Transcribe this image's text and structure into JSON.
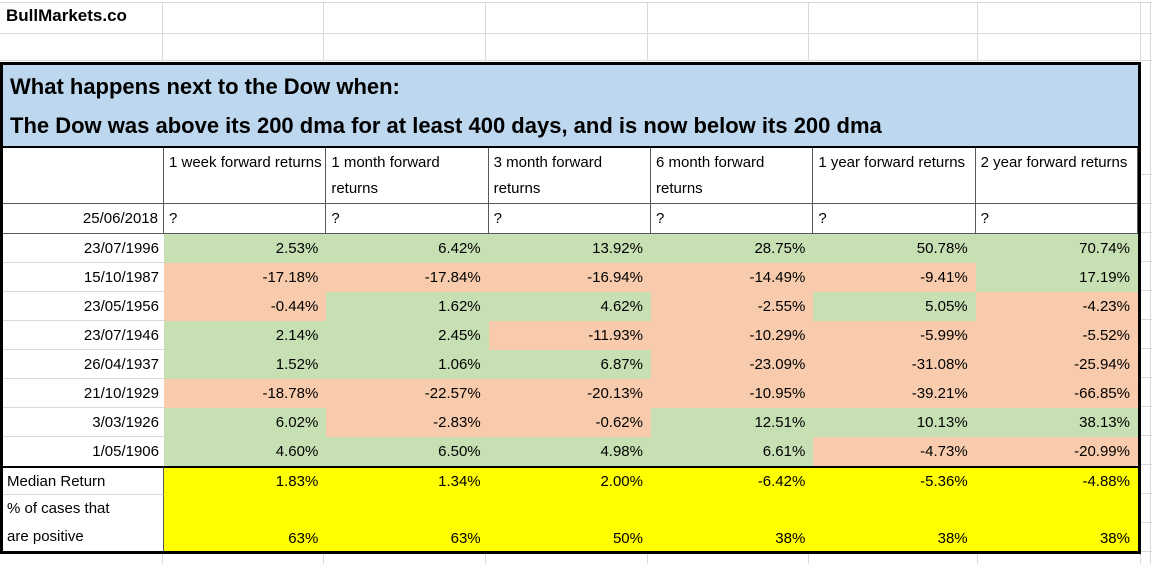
{
  "brand": "BullMarkets.co",
  "title": {
    "line1": "What happens next to the Dow when:",
    "line2": "The Dow was above its 200 dma for at least 400 days, and is now below its 200 dma"
  },
  "table": {
    "columns": [
      "1 week forward returns",
      "1 month forward returns",
      "3 month forward returns",
      "6 month forward returns",
      "1 year forward returns",
      "2 year forward returns"
    ],
    "pending_row": {
      "date": "25/06/2018",
      "values": [
        "?",
        "?",
        "?",
        "?",
        "?",
        "?"
      ]
    },
    "rows": [
      {
        "date": "23/07/1996",
        "values": [
          "2.53%",
          "6.42%",
          "13.92%",
          "28.75%",
          "50.78%",
          "70.74%"
        ]
      },
      {
        "date": "15/10/1987",
        "values": [
          "-17.18%",
          "-17.84%",
          "-16.94%",
          "-14.49%",
          "-9.41%",
          "17.19%"
        ]
      },
      {
        "date": "23/05/1956",
        "values": [
          "-0.44%",
          "1.62%",
          "4.62%",
          "-2.55%",
          "5.05%",
          "-4.23%"
        ]
      },
      {
        "date": "23/07/1946",
        "values": [
          "2.14%",
          "2.45%",
          "-11.93%",
          "-10.29%",
          "-5.99%",
          "-5.52%"
        ]
      },
      {
        "date": "26/04/1937",
        "values": [
          "1.52%",
          "1.06%",
          "6.87%",
          "-23.09%",
          "-31.08%",
          "-25.94%"
        ]
      },
      {
        "date": "21/10/1929",
        "values": [
          "-18.78%",
          "-22.57%",
          "-20.13%",
          "-10.95%",
          "-39.21%",
          "-66.85%"
        ]
      },
      {
        "date": "3/03/1926",
        "values": [
          "6.02%",
          "-2.83%",
          "-0.62%",
          "12.51%",
          "10.13%",
          "38.13%"
        ]
      },
      {
        "date": "1/05/1906",
        "values": [
          "4.60%",
          "6.50%",
          "4.98%",
          "6.61%",
          "-4.73%",
          "-20.99%"
        ]
      }
    ],
    "summary": {
      "median_label": "Median Return",
      "median_values": [
        "1.83%",
        "1.34%",
        "2.00%",
        "-6.42%",
        "-5.36%",
        "-4.88%"
      ],
      "positive_label_line1": "% of cases that",
      "positive_label_line2": "are positive",
      "positive_values": [
        "63%",
        "63%",
        "50%",
        "38%",
        "38%",
        "38%"
      ]
    }
  },
  "colors": {
    "positive_bg": "#C6E0B4",
    "negative_bg": "#F8CBAD",
    "title_bg": "#BDD7EE",
    "summary_bg": "#FFFF00",
    "gridline": "#D9D9D9"
  }
}
